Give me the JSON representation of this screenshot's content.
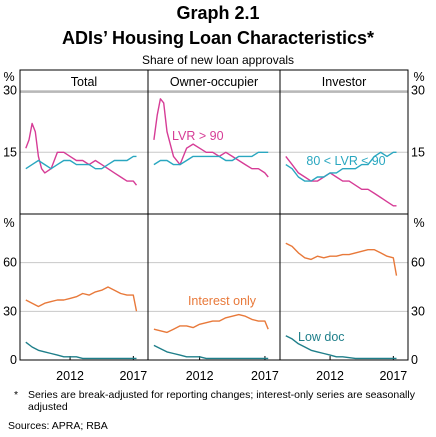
{
  "header": {
    "graph_number": "Graph 2.1",
    "title": "ADIs’ Housing Loan Characteristics*",
    "subtitle": "Share of new loan approvals"
  },
  "footnote": {
    "marker": "*",
    "text": "Series are break-adjusted for reporting changes; interest-only series are seasonally adjusted"
  },
  "sources": "Sources: APRA; RBA",
  "colors": {
    "lvr_gt_90": "#d63c96",
    "lvr_80_90": "#2aa7c0",
    "interest_only": "#e8793a",
    "low_doc": "#1f7f8a",
    "grid": "#c8c8c8",
    "frame": "#000000"
  },
  "chart_data": {
    "type": "line",
    "panel_titles": [
      "Total",
      "Owner-occupier",
      "Investor"
    ],
    "x_ticks": [
      "2012",
      "2017"
    ],
    "top_panel": {
      "ylabel": "%",
      "ylim": [
        0,
        35
      ],
      "yticks": [
        "15",
        "30"
      ],
      "annotations": [
        "LVR > 90",
        "80 < LVR ≤ 90"
      ]
    },
    "bottom_panel": {
      "ylabel": "%",
      "ylim": [
        0,
        90
      ],
      "yticks": [
        "0",
        "30",
        "60"
      ],
      "annotations": [
        "Interest only",
        "Low doc"
      ]
    },
    "series": [
      {
        "panel": "top",
        "column": "Total",
        "key": "lvr_gt_90",
        "x": [
          2008.5,
          2008.75,
          2009,
          2009.25,
          2009.5,
          2009.75,
          2010,
          2010.5,
          2011,
          2011.5,
          2012,
          2012.5,
          2013,
          2013.5,
          2014,
          2014.5,
          2015,
          2015.5,
          2016,
          2016.5,
          2017,
          2017.25
        ],
        "values": [
          16,
          18,
          22,
          20,
          14,
          11,
          10,
          11,
          15,
          15,
          14,
          13,
          13,
          12,
          13,
          12,
          11,
          10,
          9,
          8,
          8,
          7
        ]
      },
      {
        "panel": "top",
        "column": "Total",
        "key": "lvr_80_90",
        "x": [
          2008.5,
          2009,
          2009.5,
          2010,
          2010.5,
          2011,
          2011.5,
          2012,
          2012.5,
          2013,
          2013.5,
          2014,
          2014.5,
          2015,
          2015.5,
          2016,
          2016.5,
          2017,
          2017.25
        ],
        "values": [
          11,
          12,
          13,
          12,
          11,
          12,
          13,
          13,
          12,
          12,
          12,
          11,
          11,
          12,
          13,
          13,
          13,
          14,
          14
        ]
      },
      {
        "panel": "top",
        "column": "Owner-occupier",
        "key": "lvr_gt_90",
        "x": [
          2008.5,
          2008.75,
          2009,
          2009.25,
          2009.5,
          2010,
          2010.5,
          2011,
          2011.5,
          2012,
          2012.5,
          2013,
          2013.5,
          2014,
          2014.5,
          2015,
          2015.5,
          2016,
          2016.5,
          2017,
          2017.25
        ],
        "values": [
          18,
          24,
          28,
          27,
          20,
          14,
          12,
          16,
          17,
          16,
          15,
          15,
          14,
          15,
          14,
          13,
          12,
          11,
          11,
          10,
          9
        ]
      },
      {
        "panel": "top",
        "column": "Owner-occupier",
        "key": "lvr_80_90",
        "x": [
          2008.5,
          2009,
          2009.5,
          2010,
          2010.5,
          2011,
          2011.5,
          2012,
          2012.5,
          2013,
          2013.5,
          2014,
          2014.5,
          2015,
          2015.5,
          2016,
          2016.5,
          2017,
          2017.25
        ],
        "values": [
          12,
          13,
          13,
          12,
          12,
          13,
          14,
          14,
          14,
          14,
          14,
          13,
          13,
          14,
          14,
          14,
          15,
          15,
          15
        ]
      },
      {
        "panel": "top",
        "column": "Investor",
        "key": "lvr_gt_90",
        "x": [
          2008.5,
          2009,
          2009.5,
          2010,
          2010.5,
          2011,
          2011.5,
          2012,
          2012.5,
          2013,
          2013.5,
          2014,
          2014.5,
          2015,
          2015.5,
          2016,
          2016.5,
          2017,
          2017.25
        ],
        "values": [
          14,
          12,
          10,
          9,
          8,
          8,
          9,
          10,
          9,
          8,
          8,
          7,
          6,
          6,
          5,
          4,
          3,
          2,
          2
        ]
      },
      {
        "panel": "top",
        "column": "Investor",
        "key": "lvr_80_90",
        "x": [
          2008.5,
          2009,
          2009.5,
          2010,
          2010.5,
          2011,
          2011.5,
          2012,
          2012.5,
          2013,
          2013.5,
          2014,
          2014.5,
          2015,
          2015.5,
          2016,
          2016.5,
          2017,
          2017.25
        ],
        "values": [
          12,
          11,
          9,
          8,
          8,
          9,
          9,
          10,
          10,
          11,
          11,
          11,
          12,
          12,
          14,
          15,
          14,
          15,
          15
        ]
      },
      {
        "panel": "bottom",
        "column": "Total",
        "key": "interest_only",
        "x": [
          2008.5,
          2009,
          2009.5,
          2010,
          2010.5,
          2011,
          2011.5,
          2012,
          2012.5,
          2013,
          2013.5,
          2014,
          2014.5,
          2015,
          2015.5,
          2016,
          2016.5,
          2017,
          2017.25
        ],
        "values": [
          37,
          35,
          33,
          35,
          36,
          37,
          37,
          38,
          39,
          41,
          40,
          42,
          43,
          45,
          43,
          41,
          40,
          40,
          30
        ]
      },
      {
        "panel": "bottom",
        "column": "Total",
        "key": "low_doc",
        "x": [
          2008.5,
          2009,
          2009.5,
          2010,
          2010.5,
          2011,
          2011.5,
          2012,
          2012.5,
          2013,
          2014,
          2015,
          2016,
          2017,
          2017.25
        ],
        "values": [
          11,
          8,
          6,
          5,
          4,
          3,
          2,
          2,
          2,
          1,
          1,
          1,
          1,
          1,
          1
        ]
      },
      {
        "panel": "bottom",
        "column": "Owner-occupier",
        "key": "interest_only",
        "x": [
          2008.5,
          2009,
          2009.5,
          2010,
          2010.5,
          2011,
          2011.5,
          2012,
          2012.5,
          2013,
          2013.5,
          2014,
          2014.5,
          2015,
          2015.5,
          2016,
          2016.5,
          2017,
          2017.25
        ],
        "values": [
          19,
          18,
          17,
          19,
          21,
          21,
          20,
          22,
          23,
          24,
          24,
          26,
          27,
          28,
          27,
          25,
          24,
          24,
          19
        ]
      },
      {
        "panel": "bottom",
        "column": "Owner-occupier",
        "key": "low_doc",
        "x": [
          2008.5,
          2009,
          2009.5,
          2010,
          2010.5,
          2011,
          2011.5,
          2012,
          2012.5,
          2013,
          2014,
          2015,
          2016,
          2017,
          2017.25
        ],
        "values": [
          9,
          7,
          5,
          4,
          3,
          2,
          2,
          2,
          1,
          1,
          1,
          1,
          1,
          1,
          1
        ]
      },
      {
        "panel": "bottom",
        "column": "Investor",
        "key": "interest_only",
        "x": [
          2008.5,
          2009,
          2009.5,
          2010,
          2010.5,
          2011,
          2011.5,
          2012,
          2012.5,
          2013,
          2013.5,
          2014,
          2014.5,
          2015,
          2015.5,
          2016,
          2016.5,
          2017,
          2017.25
        ],
        "values": [
          72,
          70,
          66,
          63,
          62,
          64,
          63,
          64,
          64,
          65,
          65,
          66,
          67,
          68,
          68,
          66,
          64,
          63,
          52
        ]
      },
      {
        "panel": "bottom",
        "column": "Investor",
        "key": "low_doc",
        "x": [
          2008.5,
          2009,
          2009.5,
          2010,
          2010.5,
          2011,
          2011.5,
          2012,
          2012.5,
          2013,
          2014,
          2015,
          2016,
          2017,
          2017.25
        ],
        "values": [
          15,
          13,
          10,
          8,
          6,
          5,
          4,
          3,
          2,
          2,
          1,
          1,
          1,
          1,
          1
        ]
      }
    ],
    "xlim": [
      2008.2,
      2018.0
    ],
    "grid": true
  }
}
